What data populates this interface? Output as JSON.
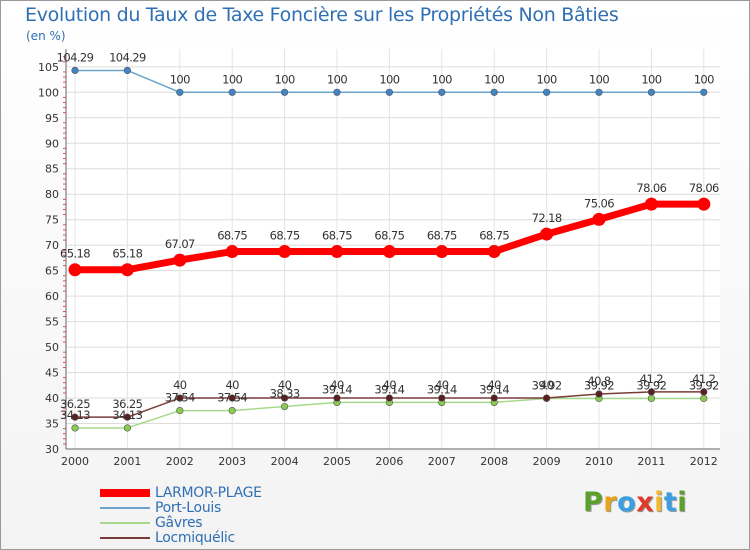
{
  "header": {
    "title": "Evolution du Taux de Taxe Foncière sur les Propriétés Non Bâties",
    "unit": "(en %)"
  },
  "brand": {
    "letters": [
      "P",
      "r",
      "o",
      "x",
      "i",
      "t",
      "i"
    ],
    "colors": [
      "#5aa02c",
      "#e8a21c",
      "#3a9fe0",
      "#e23a2a",
      "#f0b82a",
      "#3a9fe0",
      "#5aa02c"
    ]
  },
  "chart_data": {
    "type": "line",
    "title": "Evolution du Taux de Taxe Foncière sur les Propriétés Non Bâties",
    "ylabel": "(en %)",
    "xlabel": "",
    "ylim": [
      30,
      105
    ],
    "yticks": [
      30,
      35,
      40,
      45,
      50,
      55,
      60,
      65,
      70,
      75,
      80,
      85,
      90,
      95,
      100,
      105
    ],
    "x": [
      "2000",
      "2001",
      "2002",
      "2003",
      "2004",
      "2005",
      "2006",
      "2007",
      "2008",
      "2009",
      "2010",
      "2011",
      "2012"
    ],
    "grid": true,
    "legend_position": "bottom-left",
    "series": [
      {
        "name": "Port-Louis",
        "color": "#6aa3cc",
        "marker": "#3f86c6",
        "values": [
          104.29,
          104.29,
          100,
          100,
          100,
          100,
          100,
          100,
          100,
          100,
          100,
          100,
          100
        ],
        "labels": [
          "104.29",
          "104.29",
          "100",
          "100",
          "100",
          "100",
          "100",
          "100",
          "100",
          "100",
          "100",
          "100",
          "100"
        ]
      },
      {
        "name": "LARMOR-PLAGE",
        "color": "#ff0000",
        "marker": "#ff0000",
        "values": [
          65.18,
          65.18,
          67.07,
          68.75,
          68.75,
          68.75,
          68.75,
          68.75,
          68.75,
          72.18,
          75.06,
          78.06,
          78.06
        ],
        "labels": [
          "65.18",
          "65.18",
          "67.07",
          "68.75",
          "68.75",
          "68.75",
          "68.75",
          "68.75",
          "68.75",
          "72.18",
          "75.06",
          "78.06",
          "78.06"
        ]
      },
      {
        "name": "Gâvres",
        "color": "#a6d98c",
        "marker": "#88cc50",
        "values": [
          34.13,
          34.13,
          37.54,
          37.54,
          38.33,
          39.14,
          39.14,
          39.14,
          39.14,
          39.92,
          39.92,
          39.92,
          39.92
        ],
        "labels": [
          "34.13",
          "34.13",
          "37.54",
          "37.54",
          "38.33",
          "39.14",
          "39.14",
          "39.14",
          "39.14",
          "39.92",
          "39.92",
          "39.92",
          "39.92"
        ]
      },
      {
        "name": "Locmiquélic",
        "color": "#7a3b3b",
        "marker": "#5a2020",
        "values": [
          36.25,
          36.25,
          40,
          40,
          40,
          40,
          40,
          40,
          40,
          40,
          40.8,
          41.2,
          41.2
        ],
        "labels": [
          "36.25",
          "36.25",
          "40",
          "40",
          "40",
          "40",
          "40",
          "40",
          "40",
          "40",
          "40.8",
          "41.2",
          "41.2"
        ]
      }
    ],
    "legend_order": [
      "LARMOR-PLAGE",
      "Port-Louis",
      "Gâvres",
      "Locmiquélic"
    ]
  }
}
